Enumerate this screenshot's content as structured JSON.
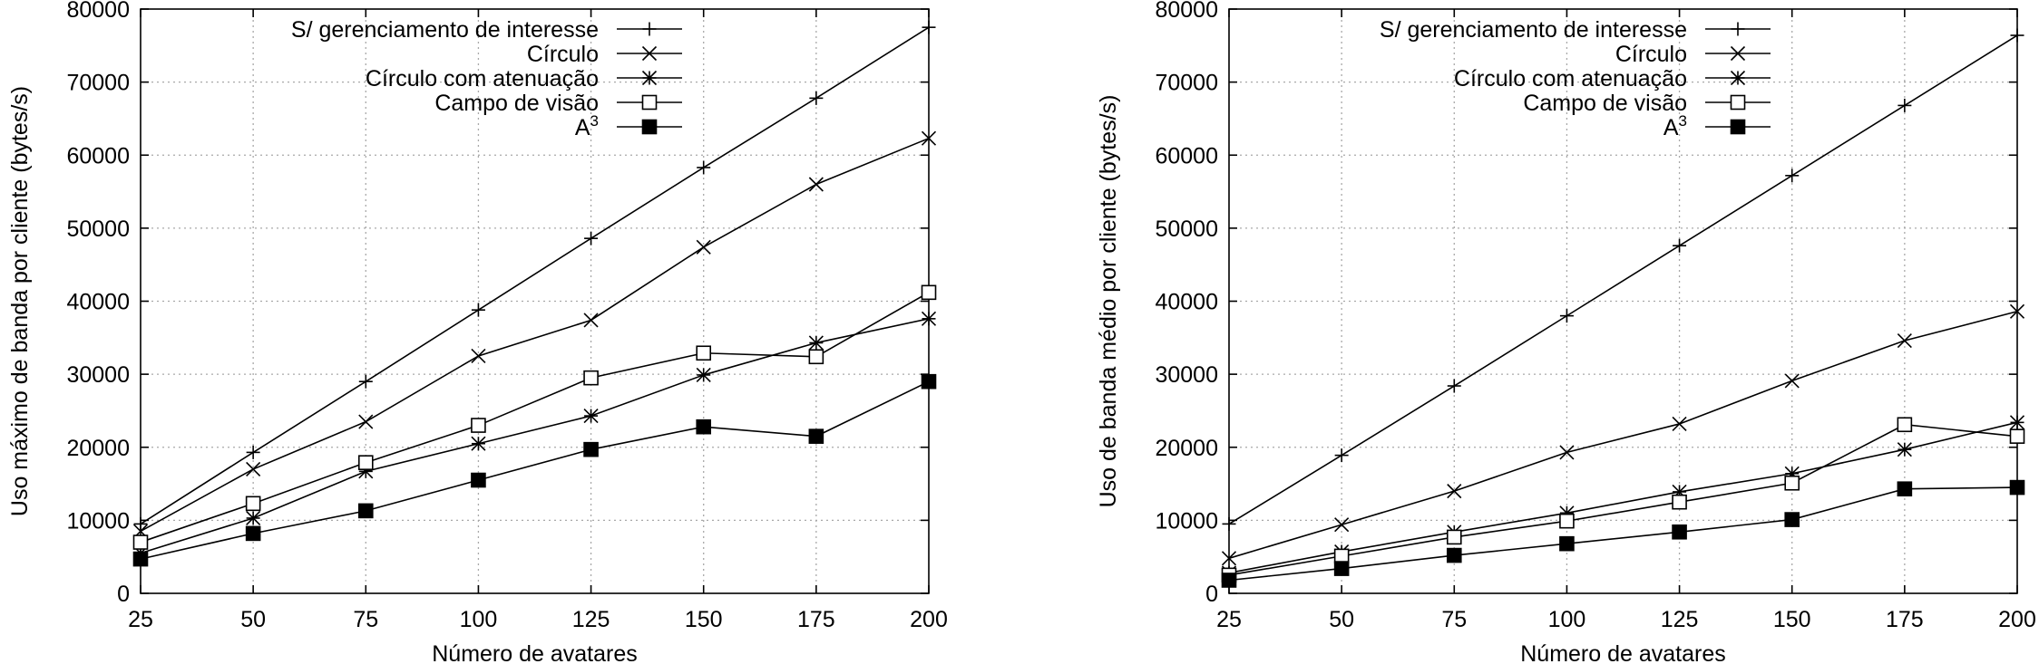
{
  "chart_data": [
    {
      "type": "line",
      "xlabel": "Número de avatares",
      "ylabel": "Uso máximo de banda por cliente (bytes/s)",
      "xlim": [
        25,
        200
      ],
      "ylim": [
        0,
        80000
      ],
      "x_ticks": [
        25,
        50,
        75,
        100,
        125,
        150,
        175,
        200
      ],
      "y_ticks": [
        0,
        10000,
        20000,
        30000,
        40000,
        50000,
        60000,
        70000,
        80000
      ],
      "grid": true,
      "legend_position": "top-left",
      "x": [
        25,
        50,
        75,
        100,
        125,
        150,
        175,
        200
      ],
      "series": [
        {
          "name": "S/ gerenciamento de interesse",
          "marker": "plus",
          "values": [
            9500,
            19300,
            29000,
            38800,
            48600,
            58300,
            67800,
            77500
          ]
        },
        {
          "name": "Círculo",
          "marker": "cross",
          "values": [
            8500,
            17000,
            23500,
            32500,
            37400,
            47400,
            56000,
            62300
          ]
        },
        {
          "name": "Círculo com atenuação",
          "marker": "star",
          "values": [
            5500,
            10300,
            16700,
            20500,
            24300,
            29900,
            34300,
            37600
          ]
        },
        {
          "name": "Campo de visão",
          "marker": "square-open",
          "values": [
            7000,
            12300,
            17900,
            23000,
            29500,
            32900,
            32400,
            41200
          ]
        },
        {
          "name": "A",
          "name_sup": "3",
          "marker": "square-filled",
          "values": [
            4700,
            8200,
            11300,
            15500,
            19700,
            22800,
            21500,
            29000
          ]
        }
      ]
    },
    {
      "type": "line",
      "xlabel": "Número de avatares",
      "ylabel": "Uso de banda médio por cliente (bytes/s)",
      "xlim": [
        25,
        200
      ],
      "ylim": [
        0,
        80000
      ],
      "x_ticks": [
        25,
        50,
        75,
        100,
        125,
        150,
        175,
        200
      ],
      "y_ticks": [
        0,
        10000,
        20000,
        30000,
        40000,
        50000,
        60000,
        70000,
        80000
      ],
      "grid": true,
      "legend_position": "top-left",
      "x": [
        25,
        50,
        75,
        100,
        125,
        150,
        175,
        200
      ],
      "series": [
        {
          "name": "S/ gerenciamento de interesse",
          "marker": "plus",
          "values": [
            9500,
            18900,
            28400,
            38000,
            47600,
            57200,
            66800,
            76400
          ]
        },
        {
          "name": "Círculo",
          "marker": "cross",
          "values": [
            4800,
            9400,
            14000,
            19300,
            23200,
            29100,
            34600,
            38600
          ]
        },
        {
          "name": "Círculo com atenuação",
          "marker": "star",
          "values": [
            2800,
            5700,
            8400,
            11000,
            13900,
            16400,
            19700,
            23400
          ]
        },
        {
          "name": "Campo de visão",
          "marker": "square-open",
          "values": [
            2500,
            5100,
            7700,
            9900,
            12500,
            15100,
            23100,
            21500
          ]
        },
        {
          "name": "A",
          "name_sup": "3",
          "marker": "square-filled",
          "values": [
            1800,
            3400,
            5200,
            6800,
            8400,
            10100,
            14300,
            14500
          ]
        }
      ]
    }
  ]
}
